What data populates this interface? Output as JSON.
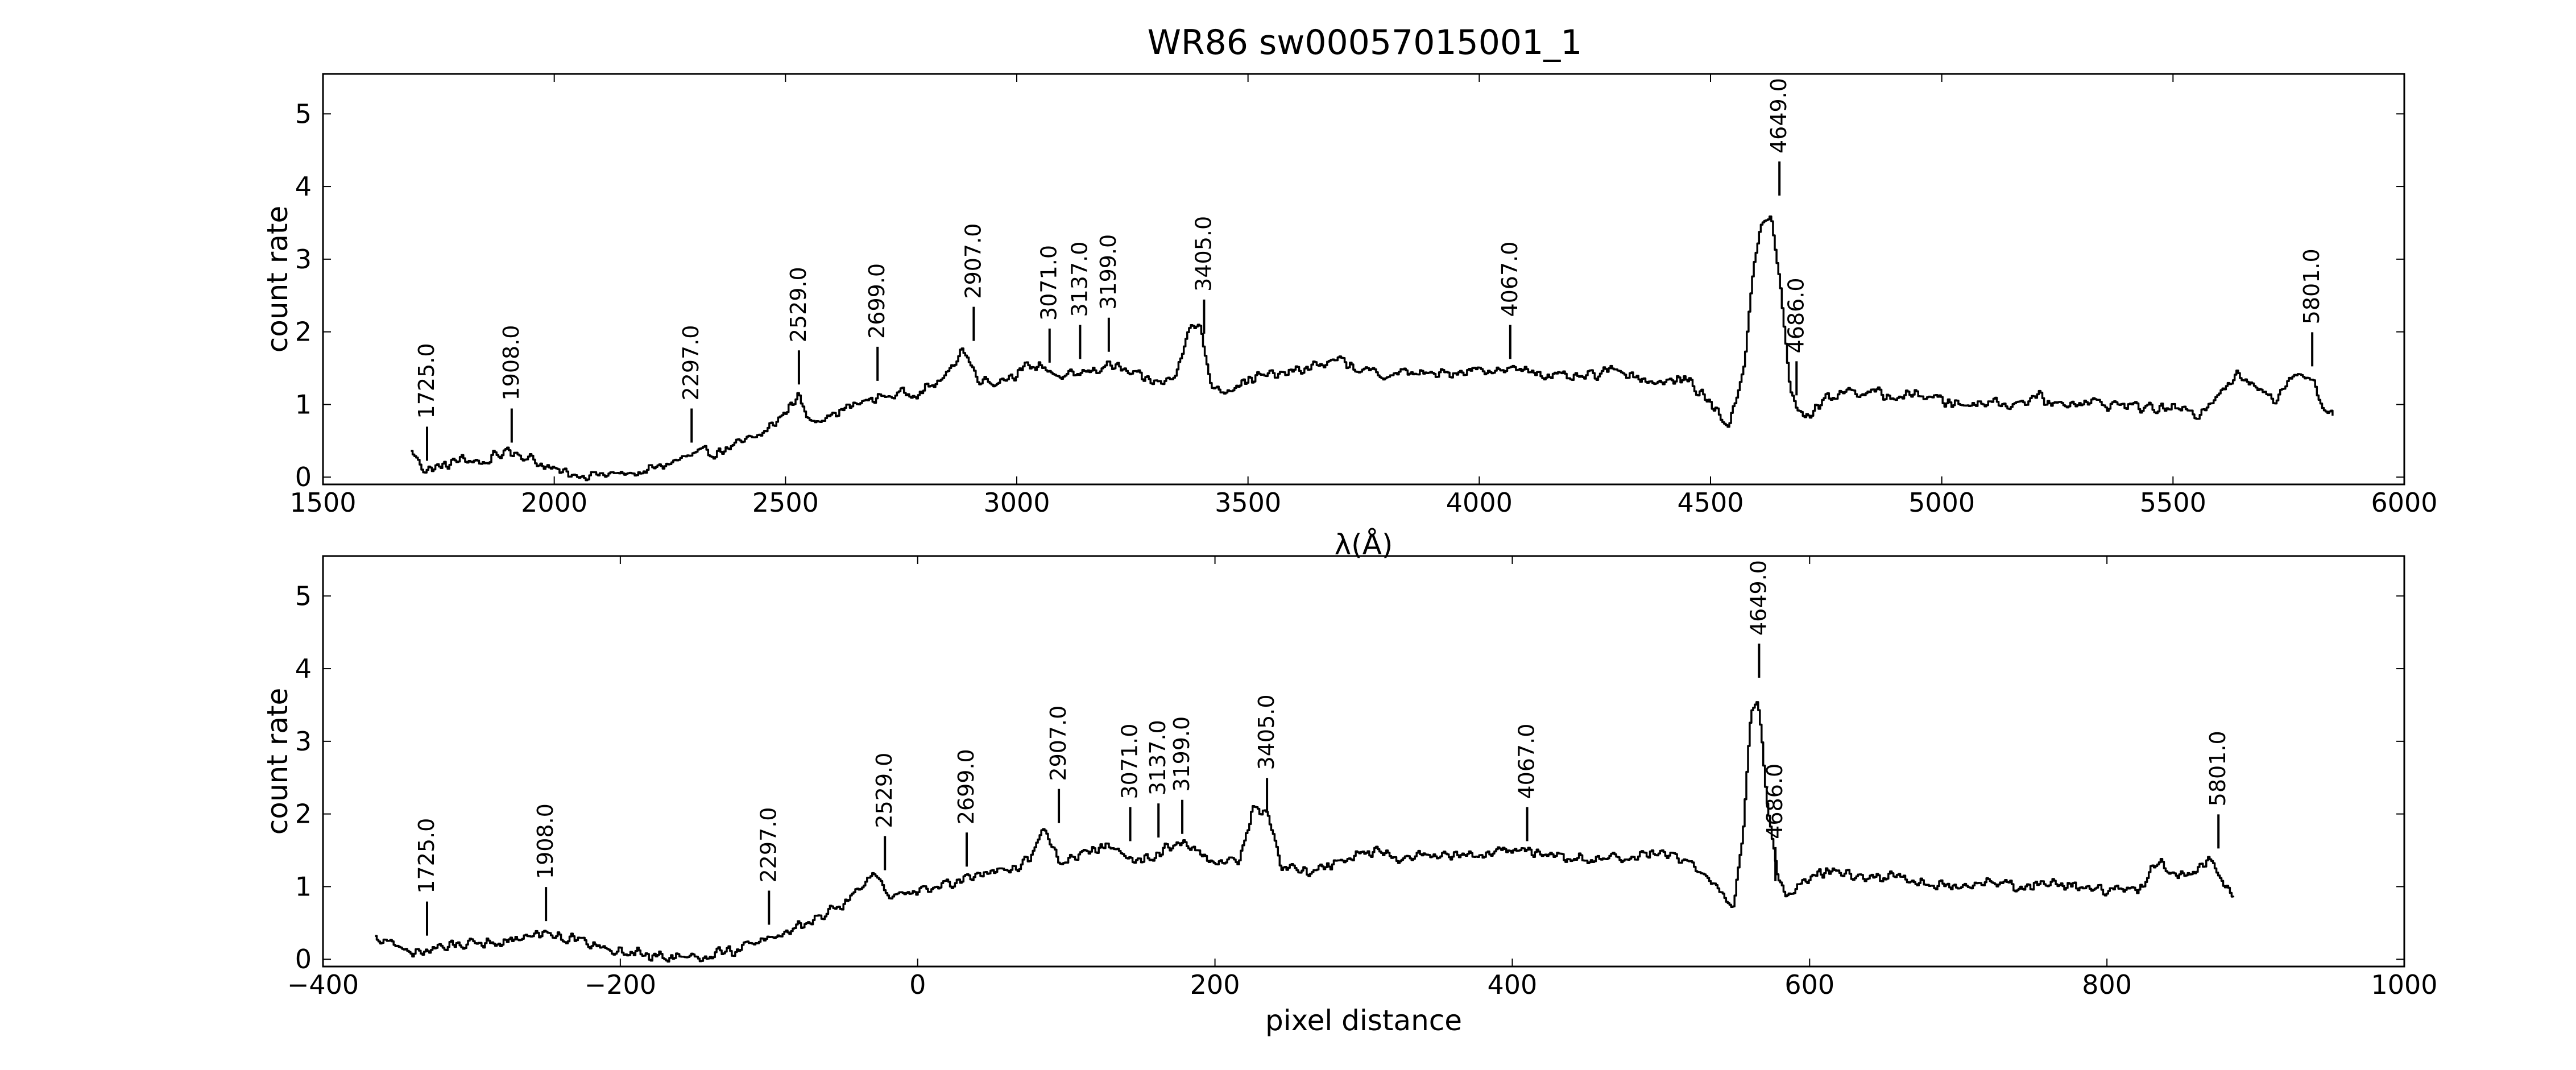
{
  "figure": {
    "title": "WR86  sw00057015001_1"
  },
  "colors": {
    "line": "#000000",
    "frame": "#000000",
    "background": "#ffffff"
  },
  "chart_data": [
    {
      "type": "line",
      "xlabel": "λ(Å)",
      "ylabel": "count rate",
      "xlim": [
        1500,
        6000
      ],
      "ylim": [
        -0.1,
        5.55
      ],
      "xticks": [
        "1500",
        "2000",
        "2500",
        "3000",
        "3500",
        "4000",
        "4500",
        "5000",
        "5500",
        "6000"
      ],
      "yticks": [
        "0",
        "1",
        "2",
        "3",
        "4",
        "5"
      ],
      "grid": false,
      "spectrum_profile": [
        [
          1690,
          0.35
        ],
        [
          1720,
          0.1
        ],
        [
          1760,
          0.15
        ],
        [
          1800,
          0.25
        ],
        [
          1850,
          0.2
        ],
        [
          1900,
          0.38
        ],
        [
          1950,
          0.25
        ],
        [
          2000,
          0.08
        ],
        [
          2050,
          0.04
        ],
        [
          2100,
          0.03
        ],
        [
          2150,
          0.04
        ],
        [
          2200,
          0.08
        ],
        [
          2250,
          0.2
        ],
        [
          2300,
          0.3
        ],
        [
          2350,
          0.35
        ],
        [
          2400,
          0.45
        ],
        [
          2450,
          0.6
        ],
        [
          2500,
          0.9
        ],
        [
          2525,
          1.15
        ],
        [
          2545,
          0.8
        ],
        [
          2600,
          0.85
        ],
        [
          2650,
          1.0
        ],
        [
          2700,
          1.1
        ],
        [
          2750,
          1.15
        ],
        [
          2800,
          1.2
        ],
        [
          2850,
          1.4
        ],
        [
          2880,
          1.8
        ],
        [
          2910,
          1.4
        ],
        [
          2950,
          1.3
        ],
        [
          3000,
          1.45
        ],
        [
          3050,
          1.55
        ],
        [
          3100,
          1.35
        ],
        [
          3150,
          1.45
        ],
        [
          3200,
          1.55
        ],
        [
          3250,
          1.4
        ],
        [
          3300,
          1.3
        ],
        [
          3340,
          1.35
        ],
        [
          3370,
          2.1
        ],
        [
          3395,
          2.05
        ],
        [
          3420,
          1.25
        ],
        [
          3450,
          1.2
        ],
        [
          3500,
          1.35
        ],
        [
          3550,
          1.4
        ],
        [
          3600,
          1.45
        ],
        [
          3650,
          1.55
        ],
        [
          3700,
          1.6
        ],
        [
          3750,
          1.45
        ],
        [
          3800,
          1.4
        ],
        [
          3850,
          1.45
        ],
        [
          3900,
          1.4
        ],
        [
          3950,
          1.45
        ],
        [
          4000,
          1.5
        ],
        [
          4050,
          1.45
        ],
        [
          4100,
          1.5
        ],
        [
          4150,
          1.4
        ],
        [
          4200,
          1.35
        ],
        [
          4250,
          1.4
        ],
        [
          4300,
          1.5
        ],
        [
          4350,
          1.35
        ],
        [
          4400,
          1.3
        ],
        [
          4450,
          1.35
        ],
        [
          4500,
          1.0
        ],
        [
          4540,
          0.7
        ],
        [
          4570,
          1.5
        ],
        [
          4590,
          2.8
        ],
        [
          4610,
          3.5
        ],
        [
          4630,
          3.6
        ],
        [
          4650,
          2.6
        ],
        [
          4670,
          1.2
        ],
        [
          4700,
          0.8
        ],
        [
          4750,
          1.1
        ],
        [
          4800,
          1.2
        ],
        [
          4850,
          1.15
        ],
        [
          4900,
          1.1
        ],
        [
          4950,
          1.15
        ],
        [
          5000,
          1.05
        ],
        [
          5050,
          1.0
        ],
        [
          5100,
          1.05
        ],
        [
          5150,
          1.0
        ],
        [
          5200,
          1.1
        ],
        [
          5250,
          1.0
        ],
        [
          5300,
          1.05
        ],
        [
          5350,
          1.0
        ],
        [
          5400,
          1.0
        ],
        [
          5450,
          0.95
        ],
        [
          5500,
          0.95
        ],
        [
          5550,
          0.85
        ],
        [
          5600,
          1.2
        ],
        [
          5640,
          1.4
        ],
        [
          5680,
          1.2
        ],
        [
          5720,
          1.1
        ],
        [
          5760,
          1.45
        ],
        [
          5800,
          1.35
        ],
        [
          5820,
          1.0
        ],
        [
          5845,
          0.9
        ]
      ],
      "line_markers": [
        {
          "label": "1725.0",
          "x": 1725,
          "y": 0.1
        },
        {
          "label": "1908.0",
          "x": 1908,
          "y": 0.35
        },
        {
          "label": "2297.0",
          "x": 2297,
          "y": 0.35
        },
        {
          "label": "2529.0",
          "x": 2529,
          "y": 1.15
        },
        {
          "label": "2699.0",
          "x": 2699,
          "y": 1.2
        },
        {
          "label": "2907.0",
          "x": 2907,
          "y": 1.75
        },
        {
          "label": "3071.0",
          "x": 3071,
          "y": 1.45
        },
        {
          "label": "3137.0",
          "x": 3137,
          "y": 1.5
        },
        {
          "label": "3199.0",
          "x": 3199,
          "y": 1.6
        },
        {
          "label": "3405.0",
          "x": 3405,
          "y": 1.85
        },
        {
          "label": "4067.0",
          "x": 4067,
          "y": 1.5
        },
        {
          "label": "4649.0",
          "x": 4649,
          "y": 3.75
        },
        {
          "label": "4686.0",
          "x": 4686,
          "y": 1.0
        },
        {
          "label": "5801.0",
          "x": 5801,
          "y": 1.4
        }
      ]
    },
    {
      "type": "line",
      "xlabel": "pixel distance",
      "ylabel": "count rate",
      "xlim": [
        -400,
        1000
      ],
      "ylim": [
        -0.1,
        5.55
      ],
      "xticks": [
        "−400",
        "−200",
        "0",
        "200",
        "400",
        "600",
        "800",
        "1000"
      ],
      "yticks": [
        "0",
        "1",
        "2",
        "3",
        "4",
        "5"
      ],
      "grid": false,
      "spectrum_profile": [
        [
          -365,
          0.3
        ],
        [
          -340,
          0.1
        ],
        [
          -320,
          0.15
        ],
        [
          -300,
          0.25
        ],
        [
          -280,
          0.25
        ],
        [
          -250,
          0.38
        ],
        [
          -230,
          0.25
        ],
        [
          -200,
          0.1
        ],
        [
          -180,
          0.05
        ],
        [
          -160,
          0.05
        ],
        [
          -140,
          0.05
        ],
        [
          -120,
          0.15
        ],
        [
          -100,
          0.3
        ],
        [
          -85,
          0.4
        ],
        [
          -70,
          0.55
        ],
        [
          -50,
          0.75
        ],
        [
          -30,
          1.2
        ],
        [
          -20,
          0.85
        ],
        [
          0,
          0.9
        ],
        [
          20,
          1.05
        ],
        [
          40,
          1.15
        ],
        [
          60,
          1.2
        ],
        [
          75,
          1.4
        ],
        [
          85,
          1.8
        ],
        [
          95,
          1.35
        ],
        [
          110,
          1.45
        ],
        [
          130,
          1.6
        ],
        [
          145,
          1.35
        ],
        [
          160,
          1.45
        ],
        [
          175,
          1.6
        ],
        [
          195,
          1.4
        ],
        [
          215,
          1.3
        ],
        [
          225,
          2.05
        ],
        [
          235,
          2.05
        ],
        [
          245,
          1.25
        ],
        [
          260,
          1.2
        ],
        [
          280,
          1.35
        ],
        [
          300,
          1.5
        ],
        [
          320,
          1.4
        ],
        [
          340,
          1.45
        ],
        [
          360,
          1.4
        ],
        [
          380,
          1.45
        ],
        [
          400,
          1.5
        ],
        [
          420,
          1.45
        ],
        [
          440,
          1.4
        ],
        [
          460,
          1.35
        ],
        [
          480,
          1.4
        ],
        [
          500,
          1.45
        ],
        [
          520,
          1.35
        ],
        [
          540,
          0.9
        ],
        [
          548,
          0.7
        ],
        [
          555,
          1.8
        ],
        [
          560,
          3.5
        ],
        [
          565,
          3.6
        ],
        [
          570,
          2.4
        ],
        [
          578,
          1.1
        ],
        [
          585,
          0.9
        ],
        [
          600,
          1.15
        ],
        [
          620,
          1.2
        ],
        [
          640,
          1.1
        ],
        [
          660,
          1.15
        ],
        [
          680,
          1.05
        ],
        [
          700,
          1.0
        ],
        [
          720,
          1.1
        ],
        [
          740,
          1.0
        ],
        [
          760,
          1.05
        ],
        [
          780,
          1.0
        ],
        [
          800,
          0.95
        ],
        [
          820,
          0.95
        ],
        [
          835,
          1.4
        ],
        [
          845,
          1.1
        ],
        [
          860,
          1.2
        ],
        [
          870,
          1.45
        ],
        [
          880,
          0.95
        ],
        [
          885,
          0.9
        ]
      ],
      "line_markers": [
        {
          "label": "1725.0",
          "x": -330,
          "y": 0.2
        },
        {
          "label": "1908.0",
          "x": -250,
          "y": 0.4
        },
        {
          "label": "2297.0",
          "x": -100,
          "y": 0.35
        },
        {
          "label": "2529.0",
          "x": -22,
          "y": 1.1
        },
        {
          "label": "2699.0",
          "x": 33,
          "y": 1.15
        },
        {
          "label": "2907.0",
          "x": 95,
          "y": 1.75
        },
        {
          "label": "3071.0",
          "x": 143,
          "y": 1.5
        },
        {
          "label": "3137.0",
          "x": 162,
          "y": 1.55
        },
        {
          "label": "3199.0",
          "x": 178,
          "y": 1.6
        },
        {
          "label": "3405.0",
          "x": 235,
          "y": 1.9
        },
        {
          "label": "4067.0",
          "x": 410,
          "y": 1.5
        },
        {
          "label": "4649.0",
          "x": 566,
          "y": 3.75
        },
        {
          "label": "4686.0",
          "x": 577,
          "y": 0.95
        },
        {
          "label": "5801.0",
          "x": 875,
          "y": 1.4
        }
      ]
    }
  ]
}
